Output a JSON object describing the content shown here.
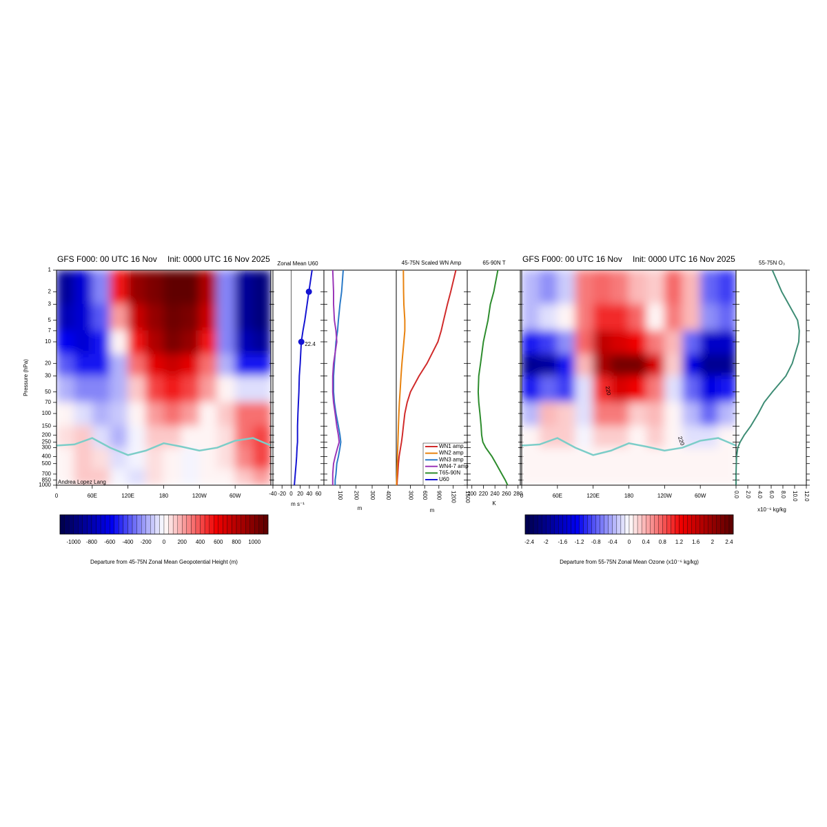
{
  "chart_data": [
    {
      "type": "heatmap",
      "title": "GFS F000: 00 UTC 16 Nov",
      "subtitle": "Init: 0000 UTC 16 Nov 2025",
      "ylabel": "Pressure (hPa)",
      "credit": "Andrea Lopez Lang",
      "xlim": [
        0,
        360
      ],
      "xticks": [
        0,
        {
          "value": 60,
          "label": "60E"
        },
        {
          "value": 120,
          "label": "120E"
        },
        180,
        {
          "value": 240,
          "label": "120W"
        },
        {
          "value": 300,
          "label": "60W"
        }
      ],
      "ylim": [
        1000,
        1
      ],
      "log_y": true,
      "yticks": [
        1,
        2,
        3,
        5,
        7,
        10,
        20,
        30,
        50,
        70,
        100,
        150,
        200,
        250,
        300,
        400,
        500,
        700,
        850,
        1000
      ],
      "lon_edges": [
        0,
        30,
        60,
        90,
        120,
        150,
        180,
        210,
        240,
        270,
        300,
        330,
        360
      ],
      "p_edges": [
        1,
        3,
        7,
        15,
        30,
        70,
        150,
        300,
        600,
        1000
      ],
      "values": [
        [
          -900,
          -700,
          -300,
          500,
          900,
          1000,
          1100,
          1100,
          800,
          -300,
          -900,
          -1000
        ],
        [
          -800,
          -700,
          -400,
          200,
          700,
          900,
          1050,
          1000,
          700,
          -300,
          -900,
          -1000
        ],
        [
          -600,
          -700,
          -500,
          0,
          500,
          800,
          1000,
          900,
          500,
          -300,
          -800,
          -900
        ],
        [
          -400,
          -500,
          -500,
          -200,
          300,
          600,
          700,
          600,
          300,
          -200,
          -500,
          -500
        ],
        [
          -200,
          -300,
          -300,
          -200,
          100,
          400,
          500,
          400,
          200,
          0,
          -100,
          -100
        ],
        [
          0,
          -100,
          -200,
          -150,
          0,
          200,
          300,
          200,
          0,
          100,
          300,
          300
        ],
        [
          50,
          100,
          -100,
          -200,
          -50,
          100,
          100,
          0,
          0,
          50,
          300,
          400
        ],
        [
          0,
          100,
          50,
          -100,
          -50,
          50,
          0,
          -50,
          0,
          50,
          250,
          400
        ],
        [
          0,
          150,
          100,
          -50,
          -100,
          50,
          0,
          -50,
          0,
          0,
          100,
          200
        ]
      ],
      "tropopause": {
        "color": "#7ccdc8",
        "x": [
          0,
          30,
          60,
          90,
          120,
          150,
          180,
          210,
          240,
          270,
          300,
          330,
          360
        ],
        "values": [
          280,
          270,
          220,
          300,
          380,
          330,
          260,
          290,
          330,
          300,
          240,
          220,
          280
        ]
      },
      "colorbar": {
        "label": "Departure from 45-75N Zonal Mean Geopotential Height (m)",
        "lim": [
          -1150,
          1150
        ],
        "levels": 46,
        "ticks": [
          -1000,
          -800,
          -600,
          -400,
          -200,
          0,
          200,
          400,
          600,
          800,
          1000
        ],
        "colormap": [
          "#00004a",
          "#0000f0",
          "#ffffff",
          "#f00000",
          "#5a0000"
        ]
      }
    },
    {
      "type": "line",
      "title": "Zonal Mean U60",
      "xlabel": "m s⁻¹",
      "xlim": [
        -40,
        72
      ],
      "xticks": [
        -40,
        -20,
        0,
        20,
        40,
        60
      ],
      "y": [
        1,
        2,
        3,
        5,
        7,
        10,
        20,
        30,
        50,
        70,
        100,
        150,
        200,
        250,
        300,
        400,
        500,
        700,
        850,
        1000
      ],
      "series": [
        {
          "name": "U60",
          "color": "#1414d2",
          "values": [
            46,
            39,
            35,
            30,
            26,
            22.4,
            20,
            18,
            17,
            16,
            15,
            14,
            14,
            14,
            13,
            12,
            11,
            9,
            8,
            7
          ]
        }
      ],
      "markers": [
        {
          "level": 2,
          "value": 39
        },
        {
          "level": 10,
          "value": 22.4
        }
      ]
    },
    {
      "type": "line",
      "title": "45-75N Scaled WN Amp",
      "xlabel": "m",
      "x2label": "m",
      "xlim": [
        0,
        450
      ],
      "xticks": [
        100,
        200,
        300,
        400
      ],
      "x2lim": [
        0,
        1500
      ],
      "x2ticks": [
        300,
        600,
        900,
        1200,
        1500
      ],
      "y": [
        1,
        2,
        3,
        5,
        7,
        10,
        20,
        30,
        50,
        70,
        100,
        150,
        200,
        250,
        300,
        400,
        500,
        700,
        850,
        1000
      ],
      "series": [
        {
          "name": "WN1 amp",
          "color": "#d02a2a",
          "axis": "x2",
          "values": [
            1260,
            1150,
            1080,
            1000,
            950,
            880,
            650,
            480,
            300,
            230,
            180,
            150,
            130,
            110,
            90,
            60,
            45,
            30,
            20,
            15
          ]
        },
        {
          "name": "WN2 amp",
          "color": "#e8820e",
          "axis": "x2",
          "values": [
            150,
            155,
            160,
            180,
            180,
            160,
            120,
            100,
            80,
            65,
            55,
            45,
            40,
            35,
            30,
            25,
            20,
            15,
            10,
            5
          ]
        },
        {
          "name": "WN3 amp",
          "color": "#2a7ac8",
          "values": [
            120,
            110,
            100,
            90,
            85,
            75,
            65,
            60,
            60,
            65,
            75,
            90,
            100,
            105,
            100,
            90,
            80,
            75,
            70,
            70
          ]
        },
        {
          "name": "WN4-7 amp",
          "color": "#9a36b8",
          "values": [
            55,
            60,
            60,
            65,
            75,
            80,
            60,
            55,
            55,
            60,
            70,
            80,
            90,
            95,
            85,
            70,
            60,
            55,
            55,
            55
          ]
        }
      ]
    },
    {
      "type": "line",
      "title": "65-90N T",
      "xlabel": "K",
      "xlim": [
        192,
        284
      ],
      "xticks": [
        200,
        220,
        240,
        260,
        280
      ],
      "y": [
        1,
        2,
        3,
        5,
        7,
        10,
        20,
        30,
        50,
        70,
        100,
        150,
        200,
        250,
        300,
        400,
        500,
        700,
        850,
        1000
      ],
      "series": [
        {
          "name": "T65-90N",
          "color": "#2c8c2c",
          "values": [
            245,
            238,
            232,
            228,
            224,
            220,
            215,
            212,
            211,
            212,
            214,
            216,
            217,
            219,
            224,
            235,
            242,
            252,
            258,
            262
          ]
        }
      ]
    },
    {
      "type": "heatmap",
      "title": "GFS F000: 00 UTC 16 Nov",
      "subtitle": "Init: 0000 UTC 16 Nov 2025",
      "xlim": [
        0,
        360
      ],
      "xticks": [
        0,
        {
          "value": 60,
          "label": "60E"
        },
        {
          "value": 120,
          "label": "120E"
        },
        180,
        {
          "value": 240,
          "label": "120W"
        },
        {
          "value": 300,
          "label": "60W"
        }
      ],
      "lon_edges": [
        0,
        30,
        60,
        90,
        120,
        150,
        180,
        210,
        240,
        270,
        300,
        330,
        360
      ],
      "p_edges": [
        1,
        3,
        7,
        15,
        30,
        70,
        150,
        300,
        600,
        1000
      ],
      "values": [
        [
          -0.4,
          -0.6,
          -0.3,
          0.6,
          0.8,
          0.6,
          0.4,
          0.2,
          0.8,
          0.4,
          -0.8,
          -1.0
        ],
        [
          -0.4,
          -0.2,
          0,
          0.6,
          1.0,
          1.0,
          0.8,
          0,
          0.6,
          0.4,
          -0.6,
          -0.8
        ],
        [
          -1.2,
          -1.0,
          -0.6,
          0.8,
          1.6,
          1.4,
          1.2,
          0.6,
          0.4,
          -0.8,
          -1.6,
          -1.6
        ],
        [
          -2.0,
          -1.8,
          -1.2,
          0.4,
          1.8,
          2.2,
          2.2,
          1.4,
          0.2,
          -1.4,
          -2.0,
          -2.0
        ],
        [
          -1.2,
          -0.8,
          -1.0,
          -0.2,
          1.0,
          1.4,
          1.2,
          0.6,
          -0.2,
          -0.8,
          -1.4,
          -1.2
        ],
        [
          -0.4,
          0.4,
          0.2,
          -0.2,
          0.6,
          0.6,
          0.2,
          0.4,
          0,
          -0.4,
          -0.8,
          -0.4
        ],
        [
          0,
          0.2,
          0.2,
          -0.1,
          0.2,
          0.2,
          0,
          0.2,
          0,
          -0.2,
          -0.2,
          0
        ],
        [
          0,
          0,
          0,
          0,
          0,
          0,
          0,
          0,
          0,
          0,
          0,
          0
        ],
        [
          0,
          0,
          0,
          0,
          0,
          0,
          0,
          0,
          0,
          0,
          0,
          0
        ]
      ],
      "tropopause": {
        "color": "#7ccdc8",
        "x": [
          0,
          30,
          60,
          90,
          120,
          150,
          180,
          210,
          240,
          270,
          300,
          330,
          360
        ],
        "values": [
          280,
          270,
          220,
          300,
          380,
          330,
          260,
          290,
          330,
          300,
          240,
          220,
          280
        ]
      },
      "contour_labels": [
        "220",
        "220"
      ],
      "colorbar": {
        "label": "Departure from 55-75N Zonal Mean Ozone (x10⁻⁶ kg/kg)",
        "lim": [
          -2.5,
          2.5
        ],
        "levels": 50,
        "ticks": [
          -2.4,
          -2,
          -1.6,
          -1.2,
          -0.8,
          -0.4,
          0,
          0.4,
          0.8,
          1.2,
          1.6,
          2,
          2.4
        ],
        "colormap": [
          "#00004a",
          "#0000f0",
          "#ffffff",
          "#f00000",
          "#5a0000"
        ]
      }
    },
    {
      "type": "line",
      "title": "55-75N O₃",
      "xlabel": "x10⁻⁶ kg/kg",
      "xlim": [
        0,
        12
      ],
      "xticks": [
        {
          "value": 0,
          "label": "0.0"
        },
        {
          "value": 2,
          "label": "2.0"
        },
        {
          "value": 4,
          "label": "4.0"
        },
        {
          "value": 6,
          "label": "6.0"
        },
        {
          "value": 8,
          "label": "8.0"
        },
        {
          "value": 10,
          "label": "10.0"
        },
        {
          "value": 12,
          "label": "12.0"
        }
      ],
      "y": [
        1,
        2,
        3,
        5,
        7,
        10,
        20,
        30,
        50,
        70,
        100,
        150,
        200,
        250,
        300,
        400,
        500,
        700,
        850,
        1000
      ],
      "series": [
        {
          "name": "O3",
          "color": "#3d8c74",
          "values": [
            6.2,
            7.8,
            9,
            10.5,
            10.8,
            10.7,
            9.6,
            8.5,
            6.2,
            4.8,
            3.8,
            2.5,
            1.4,
            0.7,
            0.3,
            0.1,
            0.05,
            0,
            0,
            0
          ]
        }
      ]
    }
  ]
}
